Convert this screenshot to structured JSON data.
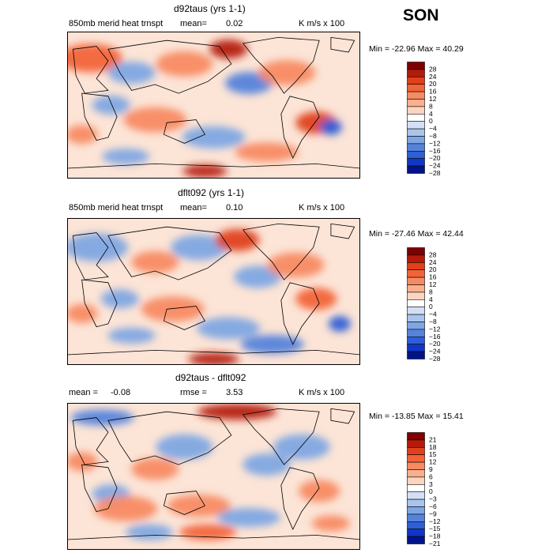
{
  "season": "SON",
  "units": "K m/s x 100",
  "chart_data": [
    {
      "type": "heatmap",
      "title": "d92taus (yrs 1-1)",
      "subtitle": "850mb merid heat trnspt",
      "mean_label": "mean=",
      "mean_value": "0.02",
      "units": "K m/s x 100",
      "min_max": "Min = -22.96 Max =  40.29",
      "legend_levels": [
        "28",
        "24",
        "20",
        "16",
        "12",
        "8",
        "4",
        "0",
        "-4",
        "-8",
        "-12",
        "-16",
        "-20",
        "-24",
        "-28"
      ],
      "legend_colors": [
        "#800000",
        "#b51b08",
        "#e0401a",
        "#f26438",
        "#f88a62",
        "#fbb08d",
        "#fcd5bf",
        "#ffffff",
        "#d2e0f5",
        "#a9c5ec",
        "#7ea6e3",
        "#5583db",
        "#2f5ed6",
        "#1236c4",
        "#00148a"
      ]
    },
    {
      "type": "heatmap",
      "title": "dflt092 (yrs 1-1)",
      "subtitle": "850mb merid heat trnspt",
      "mean_label": "mean=",
      "mean_value": "0.10",
      "units": "K m/s x 100",
      "min_max": "Min = -27.46 Max =  42.44",
      "legend_levels": [
        "28",
        "24",
        "20",
        "16",
        "12",
        "8",
        "4",
        "0",
        "-4",
        "-8",
        "-12",
        "-16",
        "-20",
        "-24",
        "-28"
      ],
      "legend_colors": [
        "#800000",
        "#b51b08",
        "#e0401a",
        "#f26438",
        "#f88a62",
        "#fbb08d",
        "#fcd5bf",
        "#ffffff",
        "#d2e0f5",
        "#a9c5ec",
        "#7ea6e3",
        "#5583db",
        "#2f5ed6",
        "#1236c4",
        "#00148a"
      ]
    },
    {
      "type": "heatmap",
      "title": "d92taus - dflt092",
      "mean_label": "mean =",
      "mean_value": "-0.08",
      "rmse_label": "rmse =",
      "rmse_value": "3.53",
      "units": "K m/s x 100",
      "min_max": "Min = -13.85 Max =  15.41",
      "legend_levels": [
        "21",
        "18",
        "15",
        "12",
        "9",
        "6",
        "3",
        "0",
        "-3",
        "-6",
        "-9",
        "-12",
        "-15",
        "-18",
        "-21"
      ],
      "legend_colors": [
        "#800000",
        "#b51b08",
        "#e0401a",
        "#f26438",
        "#f88a62",
        "#fbb08d",
        "#fcd5bf",
        "#ffffff",
        "#d2e0f5",
        "#a9c5ec",
        "#7ea6e3",
        "#5583db",
        "#2f5ed6",
        "#1236c4",
        "#00148a"
      ]
    }
  ]
}
